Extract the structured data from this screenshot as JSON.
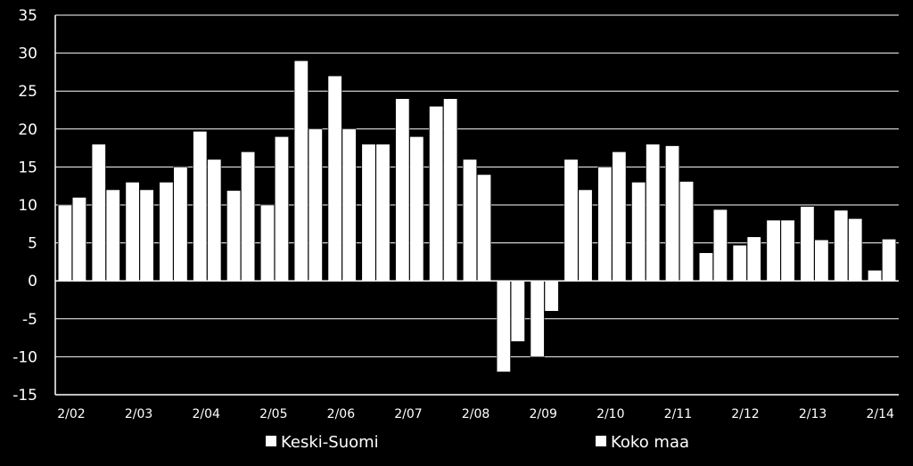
{
  "chart_data": {
    "type": "bar",
    "ylim": [
      -15,
      35
    ],
    "yticks": [
      -15,
      -10,
      -5,
      0,
      5,
      10,
      15,
      20,
      25,
      30,
      35
    ],
    "grid": true,
    "legend_position": "bottom",
    "xtick_labels": [
      "2/02",
      "2/03",
      "2/04",
      "2/05",
      "2/06",
      "2/07",
      "2/08",
      "2/09",
      "2/10",
      "2/11",
      "2/12",
      "2/13",
      "2/14"
    ],
    "series": [
      {
        "name": "Keski-Suomi",
        "color": "#ffffff",
        "values": [
          10,
          18,
          13,
          13,
          19.7,
          11.9,
          10,
          29,
          27,
          18,
          24,
          23,
          16,
          -12,
          -10,
          16,
          15,
          13,
          17.8,
          3.7,
          4.7,
          8,
          9.8,
          9.3,
          1.4
        ]
      },
      {
        "name": "Koko maa",
        "color": "#ffffff",
        "values": [
          11,
          12,
          12,
          15,
          16,
          17,
          19,
          20,
          20,
          18,
          19,
          24,
          14,
          -8,
          -4,
          12,
          17,
          18,
          13.1,
          9.4,
          5.8,
          8,
          5.4,
          8.2,
          5.5
        ]
      }
    ]
  }
}
